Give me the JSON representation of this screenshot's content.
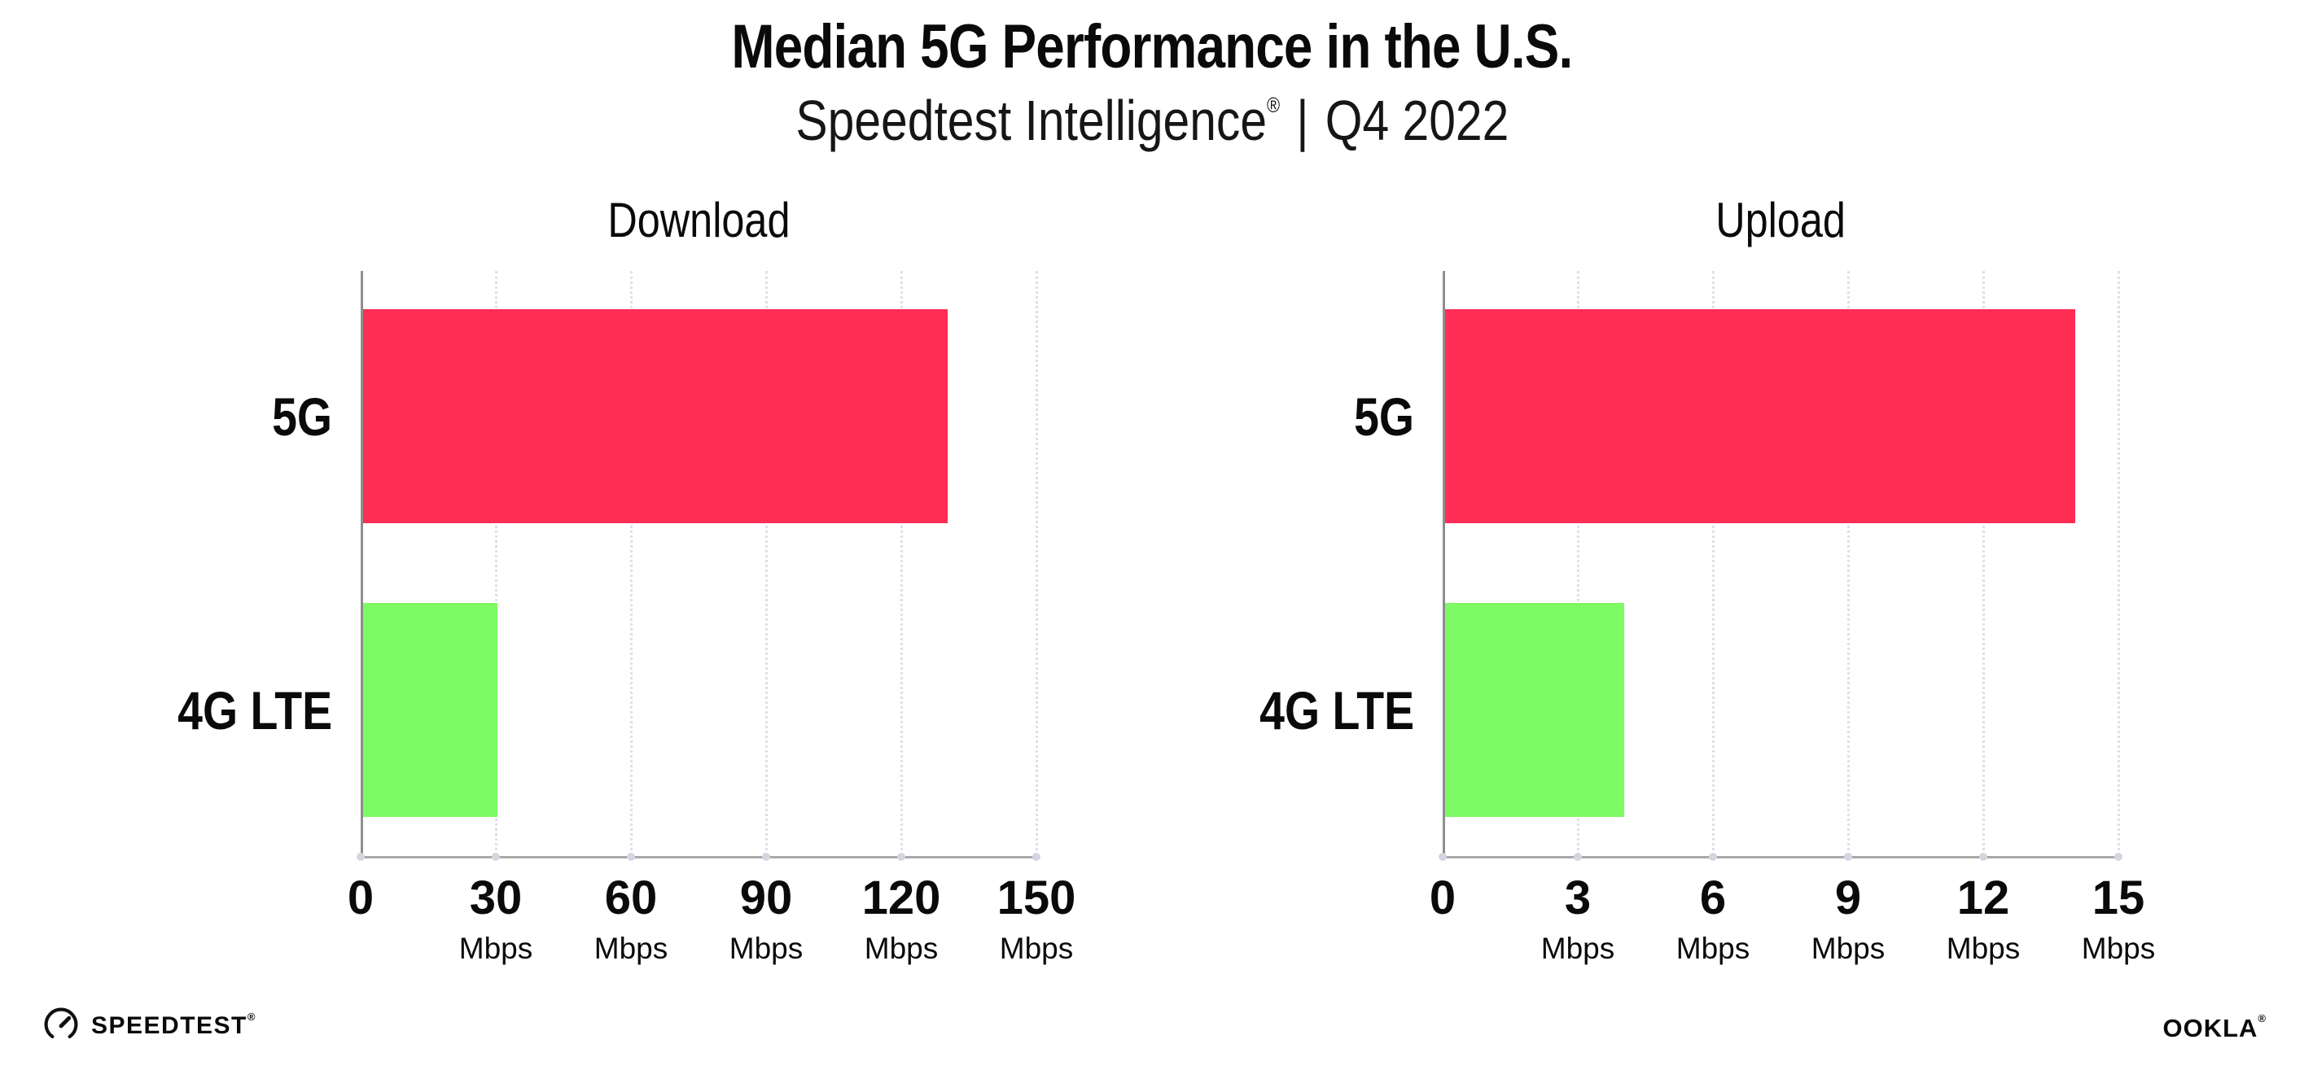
{
  "header": {
    "title": "Median 5G Performance in the U.S.",
    "subtitle_product": "Speedtest Intelligence",
    "subtitle_registered_mark": "®",
    "subtitle_separator": "|",
    "subtitle_period": "Q4 2022"
  },
  "chart_data": [
    {
      "type": "bar",
      "orientation": "horizontal",
      "title": "Download",
      "categories": [
        "5G",
        "4G LTE"
      ],
      "values": [
        130,
        30
      ],
      "unit": "Mbps",
      "xlim": [
        0,
        150
      ],
      "xticks": [
        0,
        30,
        60,
        90,
        120,
        150
      ],
      "tick_unit_label": "Mbps",
      "bar_colors": [
        "#FF2D55",
        "#7DFA64"
      ],
      "grid": "dotted vertical gridlines at each tick",
      "legend": "none"
    },
    {
      "type": "bar",
      "orientation": "horizontal",
      "title": "Upload",
      "categories": [
        "5G",
        "4G LTE"
      ],
      "values": [
        14,
        4
      ],
      "unit": "Mbps",
      "xlim": [
        0,
        15
      ],
      "xticks": [
        0,
        3,
        6,
        9,
        12,
        15
      ],
      "tick_unit_label": "Mbps",
      "bar_colors": [
        "#FF2D55",
        "#7DFA64"
      ],
      "grid": "dotted vertical gridlines at each tick",
      "legend": "none"
    }
  ],
  "footer": {
    "speedtest_logo_text": "SPEEDTEST",
    "speedtest_registered_mark": "®",
    "ookla_logo_text": "OOKLA",
    "ookla_registered_mark": "®"
  },
  "colors": {
    "bar_5g": "#FF2D55",
    "bar_4g_lte": "#7DFA64",
    "background": "#FFFFFF",
    "text": "#0A0A0A",
    "axis": "#8E8E8E",
    "gridline": "#DFDFEA"
  }
}
